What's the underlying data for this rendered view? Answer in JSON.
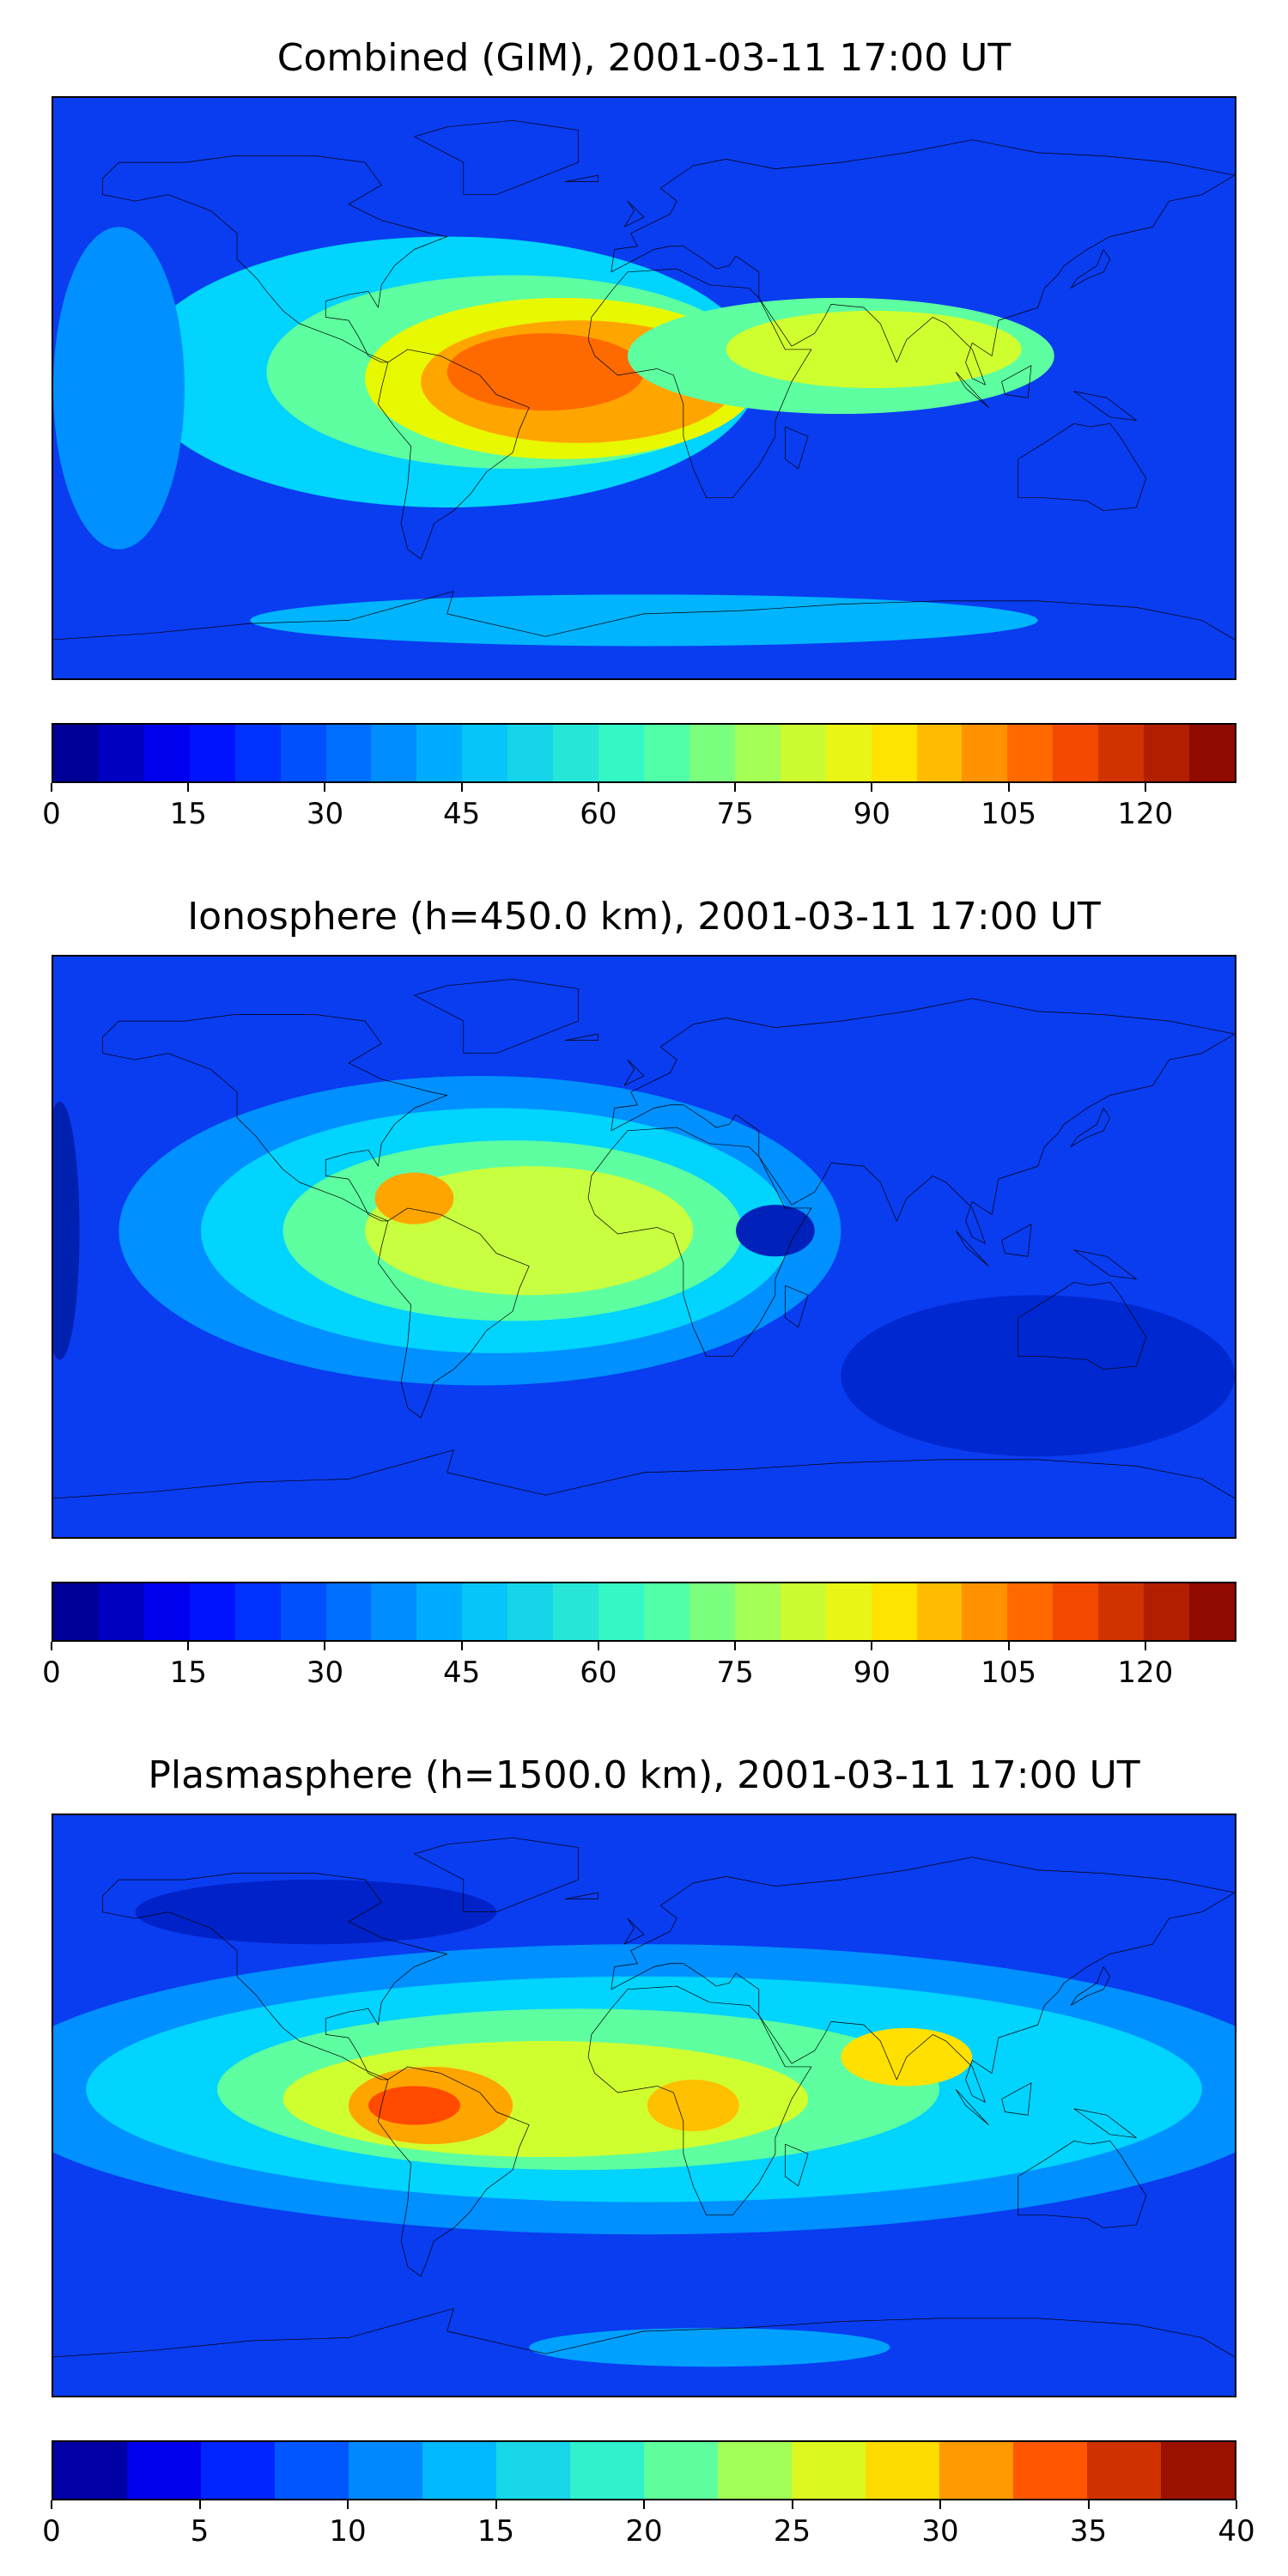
{
  "panels": [
    {
      "id": "combined",
      "title": "Combined (GIM), 2001-03-11 17:00 UT",
      "colorbar": {
        "min": 0,
        "max": 130,
        "levels": 26,
        "ticks": [
          "0",
          "15",
          "30",
          "45",
          "60",
          "75",
          "90",
          "105",
          "120"
        ],
        "tick_values": [
          0,
          15,
          30,
          45,
          60,
          75,
          90,
          105,
          120
        ]
      },
      "field": {
        "background": "#0a3cf0",
        "blobs": [
          {
            "lon": -60,
            "lat": 5,
            "rx": 95,
            "ry": 42,
            "color": "#00d4ff"
          },
          {
            "lon": -40,
            "lat": 5,
            "rx": 75,
            "ry": 30,
            "color": "#5dffa0"
          },
          {
            "lon": -25,
            "lat": 3,
            "rx": 60,
            "ry": 25,
            "color": "#e8f800"
          },
          {
            "lon": -20,
            "lat": 2,
            "rx": 48,
            "ry": 19,
            "color": "#ffa500"
          },
          {
            "lon": -30,
            "lat": 5,
            "rx": 30,
            "ry": 12,
            "color": "#ff6a00"
          },
          {
            "lon": 60,
            "lat": 10,
            "rx": 65,
            "ry": 18,
            "color": "#5dffa0"
          },
          {
            "lon": 70,
            "lat": 12,
            "rx": 45,
            "ry": 12,
            "color": "#d0ff30"
          },
          {
            "lon": -160,
            "lat": 0,
            "rx": 20,
            "ry": 50,
            "color": "#0090ff"
          },
          {
            "lon": 0,
            "lat": -72,
            "rx": 120,
            "ry": 8,
            "color": "#00b4ff"
          }
        ]
      }
    },
    {
      "id": "ionosphere",
      "title": "Ionosphere  (h=450.0 km), 2001-03-11 17:00 UT",
      "colorbar": {
        "min": 0,
        "max": 130,
        "levels": 26,
        "ticks": [
          "0",
          "15",
          "30",
          "45",
          "60",
          "75",
          "90",
          "105",
          "120"
        ],
        "tick_values": [
          0,
          15,
          30,
          45,
          60,
          75,
          90,
          105,
          120
        ]
      },
      "field": {
        "background": "#0a3cf0",
        "blobs": [
          {
            "lon": -50,
            "lat": 5,
            "rx": 110,
            "ry": 48,
            "color": "#0090ff"
          },
          {
            "lon": -45,
            "lat": 5,
            "rx": 90,
            "ry": 38,
            "color": "#00d4ff"
          },
          {
            "lon": -40,
            "lat": 5,
            "rx": 70,
            "ry": 28,
            "color": "#5dffa0"
          },
          {
            "lon": -35,
            "lat": 5,
            "rx": 50,
            "ry": 20,
            "color": "#c8ff40"
          },
          {
            "lon": -70,
            "lat": 15,
            "rx": 12,
            "ry": 8,
            "color": "#ffa500"
          },
          {
            "lon": 40,
            "lat": 5,
            "rx": 12,
            "ry": 8,
            "color": "#0022bb"
          },
          {
            "lon": 120,
            "lat": -40,
            "rx": 60,
            "ry": 25,
            "color": "#0028d0"
          },
          {
            "lon": -178,
            "lat": 5,
            "rx": 6,
            "ry": 40,
            "color": "#0020b0"
          }
        ]
      }
    },
    {
      "id": "plasmasphere",
      "title": "Plasmasphere (h=1500.0 km), 2001-03-11 17:00 UT",
      "colorbar": {
        "min": 0,
        "max": 40,
        "levels": 16,
        "ticks": [
          "0",
          "5",
          "10",
          "15",
          "20",
          "25",
          "30",
          "35",
          "40"
        ],
        "tick_values": [
          0,
          5,
          10,
          15,
          20,
          25,
          30,
          35,
          40
        ]
      },
      "field": {
        "background": "#0a3cf0",
        "blobs": [
          {
            "lon": 0,
            "lat": 5,
            "rx": 200,
            "ry": 45,
            "color": "#0090ff"
          },
          {
            "lon": 0,
            "lat": 5,
            "rx": 170,
            "ry": 35,
            "color": "#00d4ff"
          },
          {
            "lon": -20,
            "lat": 5,
            "rx": 110,
            "ry": 25,
            "color": "#5dffa0"
          },
          {
            "lon": -30,
            "lat": 2,
            "rx": 80,
            "ry": 18,
            "color": "#d0ff30"
          },
          {
            "lon": -65,
            "lat": 0,
            "rx": 25,
            "ry": 12,
            "color": "#ffa500"
          },
          {
            "lon": -70,
            "lat": 0,
            "rx": 14,
            "ry": 6,
            "color": "#ff4a00"
          },
          {
            "lon": 15,
            "lat": 0,
            "rx": 14,
            "ry": 8,
            "color": "#ffc000"
          },
          {
            "lon": 80,
            "lat": 15,
            "rx": 20,
            "ry": 9,
            "color": "#ffe000"
          },
          {
            "lon": -100,
            "lat": 60,
            "rx": 55,
            "ry": 10,
            "color": "#0022c8"
          },
          {
            "lon": 20,
            "lat": -75,
            "rx": 55,
            "ry": 6,
            "color": "#00a0ff"
          }
        ]
      }
    }
  ]
}
